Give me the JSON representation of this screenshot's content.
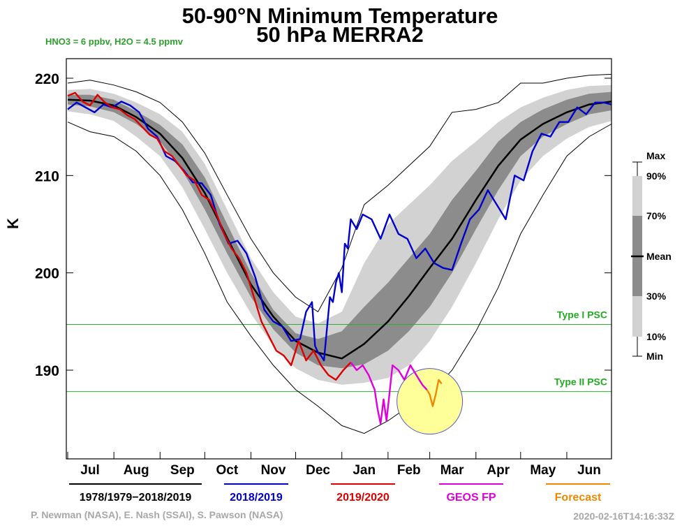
{
  "chart_data": {
    "type": "line",
    "title": "50-90°N Minimum Temperature",
    "title_line2": "50 hPa   MERRA2",
    "subtitle": "HNO3 = 6 ppbv, H2O = 4.5 ppmv",
    "ylabel": "K",
    "ylim": [
      182,
      223
    ],
    "yticks": [
      190,
      200,
      210,
      220
    ],
    "xlim": [
      0,
      365
    ],
    "months": [
      {
        "label": "Jul",
        "day": 15
      },
      {
        "label": "Aug",
        "day": 46
      },
      {
        "label": "Sep",
        "day": 77
      },
      {
        "label": "Oct",
        "day": 107
      },
      {
        "label": "Nov",
        "day": 138
      },
      {
        "label": "Dec",
        "day": 168
      },
      {
        "label": "Jan",
        "day": 199
      },
      {
        "label": "Feb",
        "day": 229
      },
      {
        "label": "Mar",
        "day": 258
      },
      {
        "label": "Apr",
        "day": 289
      },
      {
        "label": "May",
        "day": 319
      },
      {
        "label": "Jun",
        "day": 350
      }
    ],
    "month_bounds": [
      0,
      31,
      62,
      92,
      123,
      153,
      184,
      215,
      243,
      274,
      304,
      335,
      365
    ],
    "psc_lines": [
      {
        "label": "Type I PSC",
        "value": 194.7
      },
      {
        "label": "Type II PSC",
        "value": 187.8
      }
    ],
    "climatology": {
      "name": "1978/1979−2018/2019",
      "color": "#000000",
      "x": [
        0,
        15,
        31,
        46,
        62,
        77,
        92,
        107,
        123,
        138,
        153,
        168,
        184,
        199,
        215,
        229,
        243,
        258,
        274,
        289,
        304,
        319,
        335,
        350,
        365
      ],
      "max": [
        219.5,
        219.8,
        219.3,
        218.6,
        217.5,
        215.5,
        212.3,
        208.0,
        203.5,
        200.0,
        197.5,
        196.0,
        200.5,
        207.0,
        209.0,
        211.0,
        213.0,
        216.5,
        216.8,
        217.5,
        219.5,
        219.5,
        220.0,
        220.3,
        220.4
      ],
      "p90": [
        218.8,
        218.9,
        218.4,
        217.5,
        216.3,
        214.5,
        211.2,
        206.5,
        201.5,
        198.0,
        195.5,
        194.8,
        196.0,
        201.0,
        205.0,
        207.0,
        209.0,
        211.5,
        213.5,
        215.5,
        217.0,
        218.0,
        218.8,
        219.2,
        219.3
      ],
      "p70": [
        218.3,
        218.3,
        217.8,
        216.6,
        215.2,
        213.2,
        209.8,
        205.0,
        200.0,
        196.2,
        193.8,
        193.2,
        194.0,
        196.5,
        199.0,
        201.5,
        204.0,
        207.5,
        210.5,
        213.5,
        215.5,
        216.8,
        217.8,
        218.4,
        218.6
      ],
      "mean": [
        217.8,
        217.7,
        217.2,
        216.0,
        214.3,
        211.8,
        208.2,
        203.6,
        198.8,
        195.5,
        193.0,
        191.8,
        191.2,
        192.7,
        195.0,
        197.6,
        200.5,
        203.5,
        207.5,
        211.0,
        213.7,
        215.3,
        216.5,
        217.3,
        217.6
      ],
      "p30": [
        217.3,
        217.1,
        216.5,
        215.3,
        213.5,
        210.5,
        206.5,
        202.0,
        197.5,
        194.2,
        191.8,
        190.5,
        190.2,
        190.6,
        192.0,
        194.0,
        196.5,
        200.0,
        204.5,
        208.5,
        212.0,
        214.0,
        215.3,
        216.3,
        216.7
      ],
      "p10": [
        216.6,
        216.3,
        215.6,
        214.0,
        212.0,
        208.8,
        204.5,
        200.0,
        195.8,
        192.5,
        190.2,
        189.0,
        188.5,
        188.7,
        189.2,
        190.5,
        193.0,
        196.5,
        201.0,
        205.5,
        209.5,
        212.0,
        213.8,
        215.0,
        215.6
      ],
      "min": [
        215.5,
        214.5,
        214.0,
        212.5,
        210.0,
        206.5,
        202.0,
        197.0,
        193.5,
        190.5,
        188.0,
        186.3,
        184.3,
        183.5,
        184.8,
        186.3,
        187.5,
        190.0,
        194.0,
        198.5,
        204.0,
        208.0,
        212.0,
        214.0,
        215.3
      ]
    },
    "series": [
      {
        "name": "2018/2019",
        "color": "#0000cc",
        "x": [
          0,
          6,
          12,
          18,
          24,
          30,
          36,
          42,
          48,
          54,
          60,
          66,
          72,
          78,
          84,
          90,
          96,
          102,
          108,
          114,
          120,
          126,
          132,
          138,
          144,
          150,
          156,
          160,
          164,
          166,
          168,
          170,
          172,
          174,
          176,
          178,
          180,
          182,
          184,
          186,
          188,
          190,
          194,
          198,
          204,
          210,
          216,
          222,
          228,
          234,
          240,
          246,
          252,
          258,
          264,
          270,
          276,
          282,
          288,
          294,
          300,
          306,
          312,
          318,
          324,
          330,
          336,
          342,
          348,
          354,
          360,
          365
        ],
        "values": [
          216.8,
          217.5,
          217.0,
          216.5,
          217.3,
          217.0,
          217.6,
          217.2,
          216.5,
          214.8,
          214.0,
          212.0,
          211.5,
          210.5,
          209.3,
          209.2,
          208.0,
          205.0,
          203.0,
          203.3,
          202.0,
          199.5,
          196.2,
          195.0,
          194.5,
          193.0,
          193.2,
          196.0,
          197.0,
          192.5,
          191.8,
          191.5,
          191.0,
          194.3,
          197.5,
          197.0,
          199.0,
          200.0,
          198.0,
          203.0,
          202.5,
          205.5,
          204.5,
          206.0,
          205.5,
          203.5,
          206.0,
          204.0,
          203.5,
          201.5,
          202.5,
          201.0,
          200.5,
          200.3,
          203.0,
          205.5,
          206.5,
          208.5,
          207.0,
          205.5,
          210.0,
          209.5,
          212.5,
          214.3,
          214.0,
          215.5,
          215.5,
          217.0,
          216.3,
          217.5,
          217.5,
          217.3
        ]
      },
      {
        "name": "2019/2020",
        "color": "#dd0000",
        "x": [
          0,
          5,
          10,
          15,
          20,
          25,
          30,
          35,
          40,
          45,
          50,
          55,
          60,
          65,
          70,
          75,
          80,
          85,
          90,
          95,
          100,
          105,
          110,
          115,
          120,
          125,
          130,
          135,
          140,
          145,
          150,
          155,
          160,
          165,
          170,
          175,
          180,
          185,
          190
        ],
        "values": [
          218.2,
          218.5,
          217.6,
          217.2,
          218.3,
          217.5,
          217.0,
          216.8,
          216.2,
          215.8,
          215.0,
          214.2,
          213.8,
          212.5,
          212.0,
          211.0,
          210.0,
          209.5,
          208.0,
          207.5,
          206.0,
          204.0,
          202.5,
          201.5,
          200.0,
          197.5,
          195.0,
          193.5,
          192.0,
          191.5,
          190.5,
          193.0,
          191.0,
          192.0,
          190.5,
          189.5,
          189.0,
          190.0,
          190.8
        ]
      },
      {
        "name": "GEOS FP",
        "color": "#dd00dd",
        "x": [
          190,
          194,
          198,
          202,
          206,
          208,
          210,
          212,
          214,
          218,
          222,
          226,
          230,
          234,
          238,
          241
        ],
        "values": [
          190.8,
          190.0,
          190.5,
          189.5,
          188.0,
          186.0,
          184.5,
          187.0,
          184.8,
          190.5,
          190.0,
          189.0,
          190.5,
          189.5,
          188.5,
          188.0
        ]
      },
      {
        "name": "Forecast",
        "color": "#ee8800",
        "x": [
          241,
          243,
          245,
          247,
          249,
          251
        ],
        "values": [
          188.0,
          187.5,
          186.3,
          187.5,
          189.0,
          188.6
        ]
      }
    ],
    "highlight": {
      "center_day": 243,
      "center_value": 186.8,
      "fill": "#ffff99",
      "stroke": "#5555cc"
    },
    "percentile_legend": {
      "labels": [
        "Max",
        "90%",
        "70%",
        "Mean",
        "30%",
        "10%",
        "Min"
      ]
    }
  },
  "credits": "P. Newman (NASA), E. Nash (SSAI), S. Pawson (NASA)",
  "timestamp": "2020-02-16T14:16:33Z"
}
